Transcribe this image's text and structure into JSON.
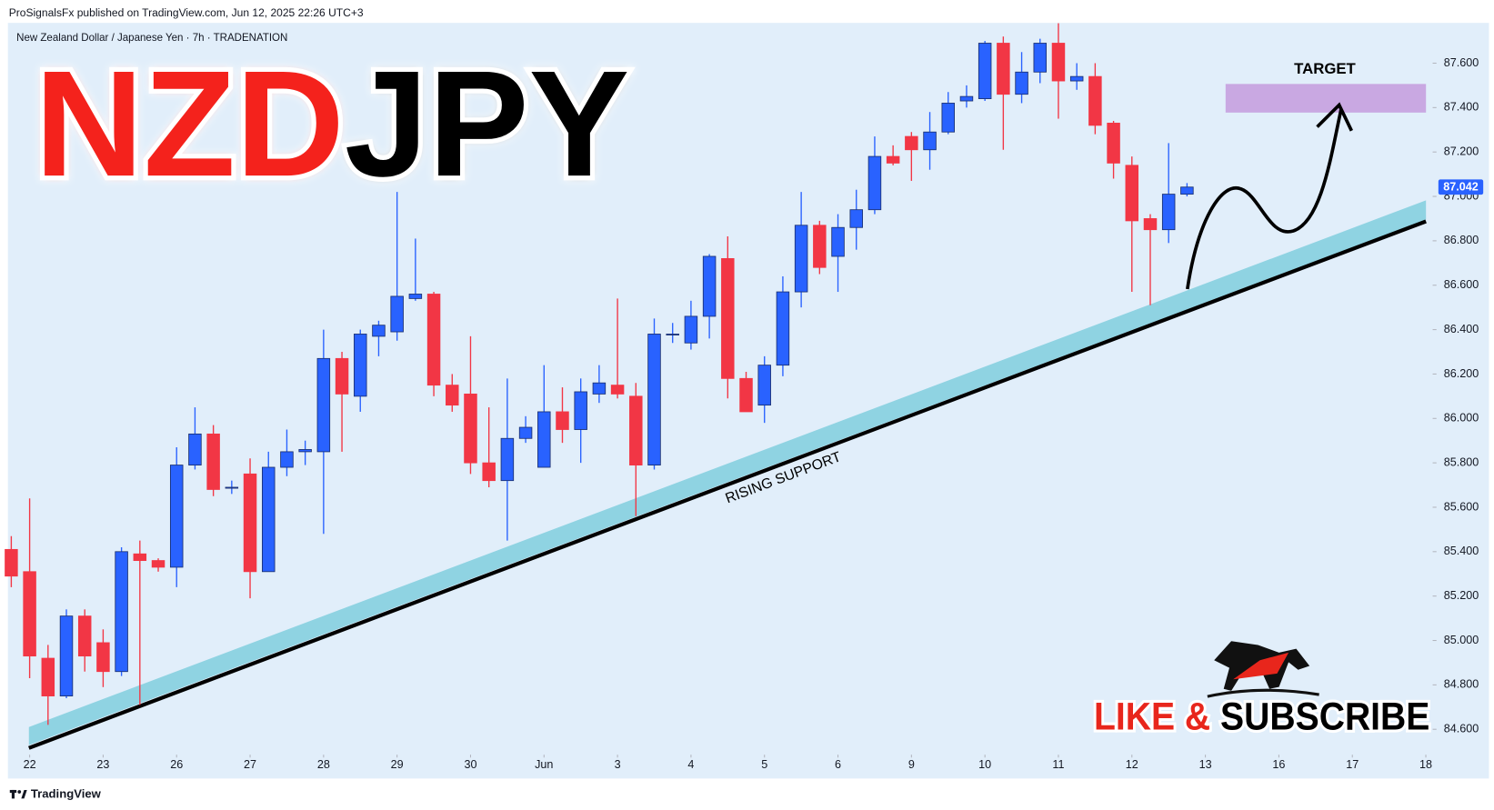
{
  "header": {
    "publisher": "ProSignalsFx published on TradingView.com, Jun 12, 2025 22:26 UTC+3"
  },
  "footer": {
    "brand": "TradingView"
  },
  "chart_data": {
    "type": "candlestick",
    "symbol": "New Zealand Dollar / Japanese Yen · 7h · TRADENATION",
    "title_parts": [
      "NZD",
      "JPY"
    ],
    "annotations": {
      "support": "RISING SUPPORT",
      "target": "TARGET",
      "cta": [
        "LIKE &",
        "SUBSCRIBE"
      ]
    },
    "up_color": "#2962ff",
    "down_color": "#f23645",
    "x": [
      -0.25,
      0,
      0.25,
      0.5,
      0.75,
      1,
      1.25,
      1.5,
      1.75,
      2,
      2.25,
      2.5,
      2.75,
      3,
      3.25,
      3.5,
      3.75,
      4,
      4.25,
      4.5,
      4.75,
      5,
      5.25,
      5.5,
      5.75,
      6,
      6.25,
      6.5,
      6.75,
      7,
      7.25,
      7.5,
      7.75,
      8,
      8.25,
      8.5,
      8.75,
      9,
      9.25,
      9.5,
      9.75,
      10,
      10.25,
      10.5,
      10.75,
      11,
      11.25,
      11.5,
      11.75,
      12,
      12.25,
      12.5,
      12.75,
      13,
      13.25,
      13.5,
      13.75,
      14,
      14.25,
      14.5,
      14.75,
      15,
      15.25,
      15.5,
      15.75
    ],
    "open": [
      85.41,
      85.31,
      84.92,
      84.75,
      85.11,
      84.99,
      84.86,
      85.39,
      85.36,
      85.33,
      85.79,
      85.93,
      85.69,
      85.75,
      85.31,
      85.78,
      85.85,
      85.85,
      86.27,
      86.1,
      86.37,
      86.39,
      86.54,
      86.56,
      86.15,
      86.11,
      85.8,
      85.72,
      85.91,
      85.78,
      86.03,
      85.95,
      86.11,
      86.15,
      86.1,
      85.79,
      86.38,
      86.34,
      86.46,
      86.72,
      86.18,
      86.06,
      86.24,
      86.57,
      86.87,
      86.73,
      86.86,
      86.94,
      87.18,
      87.27,
      87.21,
      87.29,
      87.43,
      87.44,
      87.69,
      87.46,
      87.56,
      87.69,
      87.52,
      87.54,
      87.33,
      87.14,
      86.9,
      86.85,
      87.01
    ],
    "high": [
      85.47,
      85.64,
      84.98,
      85.14,
      85.14,
      85.05,
      85.42,
      85.45,
      85.37,
      85.87,
      86.05,
      85.97,
      85.72,
      85.82,
      85.85,
      85.95,
      85.9,
      86.4,
      86.3,
      86.4,
      86.44,
      87.02,
      86.81,
      86.57,
      86.2,
      86.37,
      86.05,
      86.18,
      86.01,
      86.24,
      86.14,
      86.18,
      86.24,
      86.54,
      86.16,
      86.45,
      86.43,
      86.53,
      86.74,
      86.82,
      86.21,
      86.28,
      86.64,
      87.02,
      86.89,
      86.92,
      87.03,
      87.27,
      87.23,
      87.29,
      87.38,
      87.47,
      87.5,
      87.7,
      87.72,
      87.65,
      87.71,
      87.78,
      87.6,
      87.6,
      87.34,
      87.18,
      86.92,
      87.24,
      87.06
    ],
    "low": [
      85.24,
      84.83,
      84.62,
      84.74,
      84.86,
      84.79,
      84.84,
      84.71,
      85.31,
      85.24,
      85.77,
      85.65,
      85.66,
      85.19,
      85.31,
      85.74,
      85.79,
      85.48,
      85.85,
      86.03,
      86.28,
      86.35,
      86.53,
      86.1,
      86.03,
      85.75,
      85.69,
      85.45,
      85.89,
      85.78,
      85.89,
      85.8,
      86.07,
      86.09,
      85.56,
      85.77,
      86.34,
      86.31,
      86.36,
      86.09,
      86.03,
      85.98,
      86.19,
      86.5,
      86.65,
      86.57,
      86.76,
      86.92,
      87.14,
      87.07,
      87.12,
      87.28,
      87.4,
      87.43,
      87.21,
      87.42,
      87.51,
      87.35,
      87.48,
      87.28,
      87.08,
      86.57,
      86.51,
      86.79,
      87.0
    ],
    "close": [
      85.29,
      84.93,
      84.75,
      85.11,
      84.93,
      84.86,
      85.4,
      85.36,
      85.33,
      85.79,
      85.93,
      85.68,
      85.69,
      85.31,
      85.78,
      85.85,
      85.86,
      86.27,
      86.11,
      86.38,
      86.42,
      86.55,
      86.56,
      86.15,
      86.06,
      85.8,
      85.72,
      85.91,
      85.96,
      86.03,
      85.95,
      86.12,
      86.16,
      86.11,
      85.79,
      86.38,
      86.38,
      86.46,
      86.73,
      86.18,
      86.03,
      86.24,
      86.57,
      86.87,
      86.68,
      86.86,
      86.94,
      87.18,
      87.15,
      87.21,
      87.29,
      87.42,
      87.45,
      87.69,
      87.46,
      87.56,
      87.69,
      87.52,
      87.54,
      87.32,
      87.15,
      86.89,
      86.85,
      87.01,
      87.042
    ],
    "xlim": [
      -0.27,
      19.08
    ],
    "xticks": [
      {
        "value": 0,
        "label": "22"
      },
      {
        "value": 1,
        "label": "23"
      },
      {
        "value": 2,
        "label": "26"
      },
      {
        "value": 3,
        "label": "27"
      },
      {
        "value": 4,
        "label": "28"
      },
      {
        "value": 5,
        "label": "29"
      },
      {
        "value": 6,
        "label": "30"
      },
      {
        "value": 7,
        "label": "Jun"
      },
      {
        "value": 8,
        "label": "3"
      },
      {
        "value": 9,
        "label": "4"
      },
      {
        "value": 10,
        "label": "5"
      },
      {
        "value": 11,
        "label": "6"
      },
      {
        "value": 12,
        "label": "9"
      },
      {
        "value": 13,
        "label": "10"
      },
      {
        "value": 14,
        "label": "11"
      },
      {
        "value": 15,
        "label": "12"
      },
      {
        "value": 16,
        "label": "13"
      },
      {
        "value": 17,
        "label": "16"
      },
      {
        "value": 18,
        "label": "17"
      },
      {
        "value": 19,
        "label": "18"
      }
    ],
    "ylim": [
      84.49,
      87.79
    ],
    "yticks": [
      {
        "value": 84.6,
        "label": "84.600"
      },
      {
        "value": 84.8,
        "label": "84.800"
      },
      {
        "value": 85.0,
        "label": "85.000"
      },
      {
        "value": 85.2,
        "label": "85.200"
      },
      {
        "value": 85.4,
        "label": "85.400"
      },
      {
        "value": 85.6,
        "label": "85.600"
      },
      {
        "value": 85.8,
        "label": "85.800"
      },
      {
        "value": 86.0,
        "label": "86.000"
      },
      {
        "value": 86.2,
        "label": "86.200"
      },
      {
        "value": 86.4,
        "label": "86.400"
      },
      {
        "value": 86.6,
        "label": "86.600"
      },
      {
        "value": 86.8,
        "label": "86.800"
      },
      {
        "value": 87.0,
        "label": "87.000"
      },
      {
        "value": 87.2,
        "label": "87.200"
      },
      {
        "value": 87.4,
        "label": "87.400"
      },
      {
        "value": 87.6,
        "label": "87.600"
      }
    ]
  }
}
